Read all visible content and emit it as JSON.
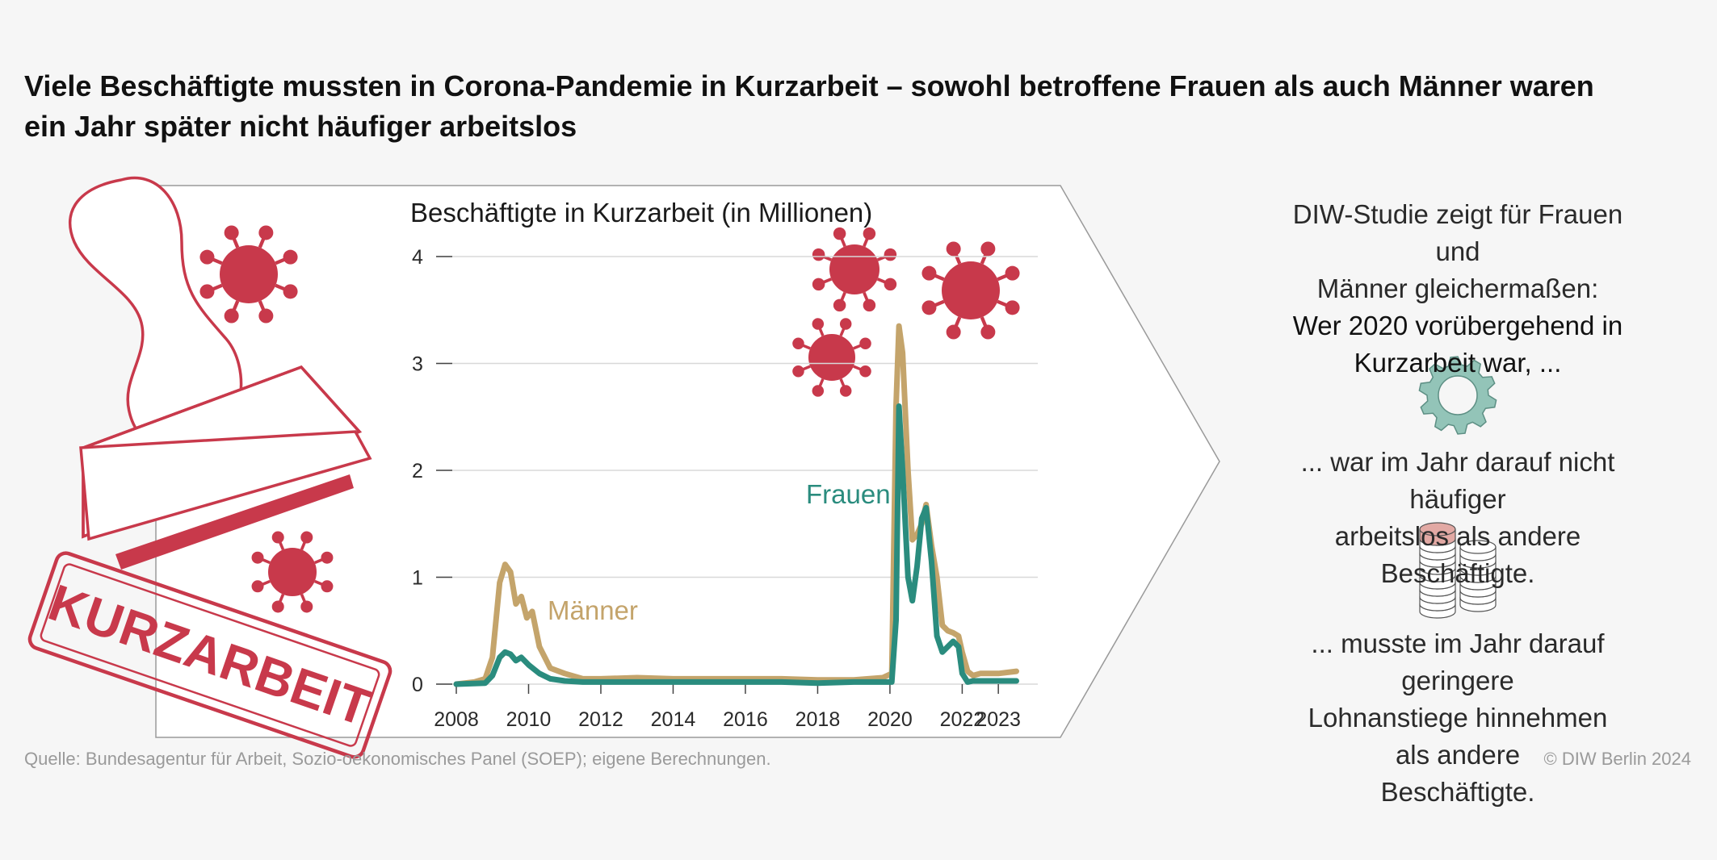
{
  "headline": {
    "line1": "Viele Beschäftigte mussten in Corona-Pandemie in Kurzarbeit – sowohl betroffene Frauen als auch Männer waren",
    "line2": "ein Jahr später nicht häufiger arbeitslos"
  },
  "stamp": {
    "text": "KURZARBEIT"
  },
  "right_panel": {
    "intro_lines": [
      "DIW-Studie zeigt für Frauen und",
      "Männer gleichermaßen:"
    ],
    "emph_lines": [
      "Wer 2020 vorübergehend in",
      "Kurzarbeit war, ..."
    ],
    "finding1_lines": [
      "... war im Jahr darauf nicht häufiger",
      "arbeitslos als andere Beschäftigte."
    ],
    "finding2_lines": [
      "... musste im Jahr darauf geringere",
      "Lohnanstiege hinnehmen als andere",
      "Beschäftigte."
    ],
    "icons": [
      "gear-icon",
      "coin-stacks-icon"
    ]
  },
  "footer": {
    "source": "Quelle: Bundesagentur für Arbeit, Sozio-oekonomisches Panel (SOEP); eigene Berechnungen.",
    "credit": "© DIW Berlin 2024"
  },
  "colors": {
    "maenner": "#c4a46b",
    "frauen": "#2a8c7e",
    "virus": "#c8394b",
    "stamp": "#c8394b",
    "gear": "#93c4b8",
    "coin_top": "#e2a9a4"
  },
  "chart_data": {
    "type": "line",
    "title": "Beschäftigte in Kurzarbeit (in Millionen)",
    "xlabel": "",
    "ylabel": "",
    "xlim": [
      2008,
      2023.6
    ],
    "ylim": [
      0,
      4
    ],
    "y_ticks": [
      0,
      1,
      2,
      3,
      4
    ],
    "x_ticks": [
      2008,
      2010,
      2012,
      2014,
      2016,
      2018,
      2020,
      2022,
      2023
    ],
    "grid": true,
    "series": [
      {
        "name": "Männer",
        "x": [
          2008.0,
          2008.5,
          2008.8,
          2009.0,
          2009.2,
          2009.35,
          2009.5,
          2009.65,
          2009.8,
          2009.95,
          2010.1,
          2010.3,
          2010.6,
          2011.0,
          2011.5,
          2012.0,
          2013.0,
          2014.0,
          2015.0,
          2016.0,
          2017.0,
          2018.0,
          2019.0,
          2019.8,
          2020.05,
          2020.17,
          2020.25,
          2020.35,
          2020.5,
          2020.62,
          2020.75,
          2020.88,
          2021.0,
          2021.15,
          2021.3,
          2021.45,
          2021.6,
          2021.75,
          2021.9,
          2022.0,
          2022.15,
          2022.3,
          2022.5,
          2023.0,
          2023.5
        ],
        "values": [
          0.0,
          0.02,
          0.05,
          0.25,
          0.95,
          1.12,
          1.05,
          0.75,
          0.82,
          0.62,
          0.68,
          0.35,
          0.15,
          0.1,
          0.05,
          0.05,
          0.06,
          0.05,
          0.05,
          0.05,
          0.05,
          0.04,
          0.04,
          0.06,
          0.1,
          2.6,
          3.35,
          3.1,
          2.0,
          1.35,
          1.4,
          1.5,
          1.68,
          1.3,
          1.0,
          0.55,
          0.5,
          0.48,
          0.45,
          0.3,
          0.12,
          0.08,
          0.1,
          0.1,
          0.12
        ]
      },
      {
        "name": "Frauen",
        "x": [
          2008.0,
          2008.8,
          2009.0,
          2009.2,
          2009.35,
          2009.5,
          2009.65,
          2009.8,
          2010.0,
          2010.3,
          2010.6,
          2011.0,
          2011.5,
          2012.0,
          2013.0,
          2014.0,
          2015.0,
          2016.0,
          2017.0,
          2018.0,
          2019.0,
          2019.8,
          2020.05,
          2020.17,
          2020.25,
          2020.35,
          2020.5,
          2020.62,
          2020.75,
          2020.88,
          2021.0,
          2021.15,
          2021.3,
          2021.45,
          2021.6,
          2021.75,
          2021.9,
          2022.0,
          2022.15,
          2022.3,
          2022.5,
          2023.0,
          2023.5
        ],
        "values": [
          0.0,
          0.01,
          0.08,
          0.25,
          0.3,
          0.28,
          0.22,
          0.25,
          0.18,
          0.1,
          0.05,
          0.03,
          0.02,
          0.02,
          0.02,
          0.02,
          0.02,
          0.02,
          0.02,
          0.01,
          0.02,
          0.02,
          0.02,
          0.6,
          2.6,
          2.0,
          1.0,
          0.78,
          1.1,
          1.55,
          1.65,
          1.15,
          0.45,
          0.3,
          0.35,
          0.4,
          0.35,
          0.1,
          0.02,
          0.03,
          0.03,
          0.03,
          0.03
        ]
      }
    ],
    "annotations": [
      {
        "text": "Männer",
        "series": "Männer"
      },
      {
        "text": "Frauen",
        "series": "Frauen"
      }
    ]
  }
}
